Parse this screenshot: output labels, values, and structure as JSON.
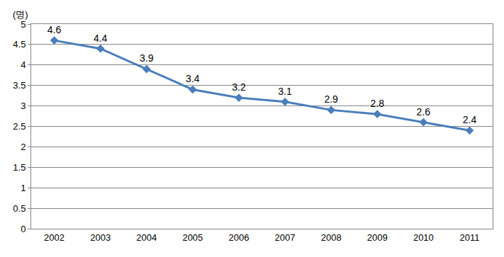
{
  "chart_data": {
    "type": "line",
    "y_label": "(명)",
    "categories": [
      "2002",
      "2003",
      "2004",
      "2005",
      "2006",
      "2007",
      "2008",
      "2009",
      "2010",
      "2011"
    ],
    "values": [
      4.6,
      4.4,
      3.9,
      3.4,
      3.2,
      3.1,
      2.9,
      2.8,
      2.6,
      2.4
    ],
    "color": "#4a7ebb",
    "marker": "diamond",
    "ylim": [
      0,
      5
    ],
    "yticks": [
      0,
      0.5,
      1,
      1.5,
      2,
      2.5,
      3,
      3.5,
      4,
      4.5,
      5
    ],
    "grid": true,
    "data_labels": true
  }
}
